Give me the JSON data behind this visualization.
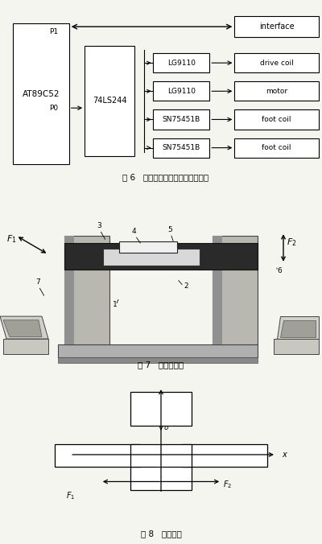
{
  "fig6_title": "图 6   产生驱动控制信号的系统框图",
  "fig7_title": "图 7   测力计装置",
  "fig8_title": "图 8   坐标示意",
  "bg_color": "#f5f5f0",
  "box_color": "#000000",
  "text_color": "#000000"
}
